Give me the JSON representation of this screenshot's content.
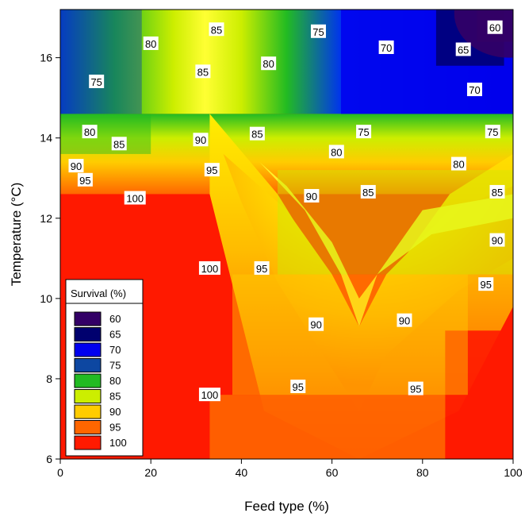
{
  "chart_data": {
    "type": "heatmap",
    "xlabel": "Feed type (%)",
    "ylabel": "Temperature (°C)",
    "xlim": [
      0,
      100
    ],
    "ylim": [
      6,
      17.2
    ],
    "xticks": [
      "0",
      "20",
      "40",
      "60",
      "80",
      "100"
    ],
    "yticks": [
      "6",
      "8",
      "10",
      "12",
      "14",
      "16"
    ],
    "legend": {
      "title": "Survival (%)",
      "placement": "bottom-left",
      "levels": [
        {
          "label": "60",
          "color": "#330066"
        },
        {
          "label": "65",
          "color": "#00006e"
        },
        {
          "label": "70",
          "color": "#0000ee"
        },
        {
          "label": "75",
          "color": "#0d47a1"
        },
        {
          "label": "80",
          "color": "#22bb22"
        },
        {
          "label": "85",
          "color": "#ccee00"
        },
        {
          "label": "90",
          "color": "#ffcc00"
        },
        {
          "label": "95",
          "color": "#ff6600"
        },
        {
          "label": "100",
          "color": "#ff1a00"
        }
      ]
    },
    "regions": [
      {
        "level": 100,
        "x": [
          0,
          33
        ],
        "y": [
          6,
          12.6
        ]
      },
      {
        "level": 100,
        "x": [
          85,
          100
        ],
        "y": [
          6,
          9.2
        ]
      },
      {
        "level": 95,
        "x": [
          33,
          85
        ],
        "y": [
          6,
          7.6
        ]
      },
      {
        "level": 90,
        "x": [
          38,
          90
        ],
        "y": [
          7.6,
          10.6
        ]
      },
      {
        "level": 85,
        "x": [
          48,
          100
        ],
        "y": [
          10.6,
          13.2
        ]
      },
      {
        "level": 80,
        "x": [
          0,
          20
        ],
        "y": [
          13.6,
          14.6
        ]
      },
      {
        "level": 75,
        "x": [
          0,
          18
        ],
        "y": [
          14.6,
          17.2
        ]
      },
      {
        "level": 70,
        "x": [
          62,
          100
        ],
        "y": [
          14.6,
          17.2
        ]
      },
      {
        "level": 65,
        "x": [
          83,
          98
        ],
        "y": [
          15.8,
          17.2
        ]
      },
      {
        "level": 60,
        "x": [
          92,
          100
        ],
        "y": [
          16.4,
          17.2
        ]
      }
    ],
    "contour_labels": [
      {
        "text": "60",
        "x": 96,
        "y": 16.75
      },
      {
        "text": "65",
        "x": 89,
        "y": 16.2
      },
      {
        "text": "70",
        "x": 72,
        "y": 16.25
      },
      {
        "text": "70",
        "x": 91.5,
        "y": 15.2
      },
      {
        "text": "75",
        "x": 57,
        "y": 16.65
      },
      {
        "text": "75",
        "x": 8,
        "y": 15.4
      },
      {
        "text": "75",
        "x": 67,
        "y": 14.15
      },
      {
        "text": "75",
        "x": 95.5,
        "y": 14.15
      },
      {
        "text": "80",
        "x": 20,
        "y": 16.35
      },
      {
        "text": "80",
        "x": 46,
        "y": 15.85
      },
      {
        "text": "80",
        "x": 6.5,
        "y": 14.15
      },
      {
        "text": "80",
        "x": 61,
        "y": 13.65
      },
      {
        "text": "80",
        "x": 88,
        "y": 13.35
      },
      {
        "text": "85",
        "x": 34.5,
        "y": 16.7
      },
      {
        "text": "85",
        "x": 31.5,
        "y": 15.65
      },
      {
        "text": "85",
        "x": 13,
        "y": 13.85
      },
      {
        "text": "85",
        "x": 43.5,
        "y": 14.1
      },
      {
        "text": "85",
        "x": 68,
        "y": 12.65
      },
      {
        "text": "85",
        "x": 96.5,
        "y": 12.65
      },
      {
        "text": "90",
        "x": 3.5,
        "y": 13.3
      },
      {
        "text": "90",
        "x": 31,
        "y": 13.95
      },
      {
        "text": "90",
        "x": 55.5,
        "y": 12.55
      },
      {
        "text": "90",
        "x": 96.5,
        "y": 11.45
      },
      {
        "text": "90",
        "x": 56.5,
        "y": 9.35
      },
      {
        "text": "90",
        "x": 76,
        "y": 9.45
      },
      {
        "text": "95",
        "x": 5.5,
        "y": 12.95
      },
      {
        "text": "95",
        "x": 33.5,
        "y": 13.2
      },
      {
        "text": "95",
        "x": 44.5,
        "y": 10.75
      },
      {
        "text": "95",
        "x": 94,
        "y": 10.35
      },
      {
        "text": "95",
        "x": 52.5,
        "y": 7.8
      },
      {
        "text": "95",
        "x": 78.5,
        "y": 7.75
      },
      {
        "text": "100",
        "x": 16.5,
        "y": 12.5
      },
      {
        "text": "100",
        "x": 33,
        "y": 10.75
      },
      {
        "text": "100",
        "x": 33,
        "y": 7.6
      }
    ]
  }
}
